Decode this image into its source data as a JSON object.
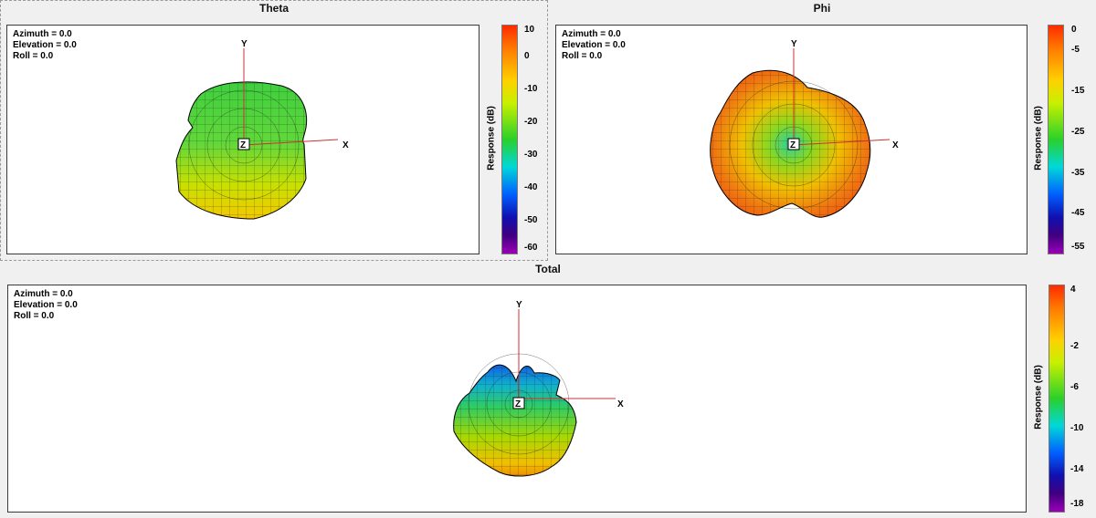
{
  "panes": [
    {
      "title": "Theta",
      "info": [
        "Azimuth = 0.0",
        "Elevation = 0.0",
        "Roll = 0.0"
      ],
      "axes": {
        "x": "X",
        "y": "Y",
        "z": "Z"
      },
      "colorbar": {
        "label": "Response  (dB)",
        "ticks": [
          "10",
          "0",
          "-10",
          "-20",
          "-30",
          "-40",
          "-50",
          "-60"
        ]
      }
    },
    {
      "title": "Phi",
      "info": [
        "Azimuth = 0.0",
        "Elevation = 0.0",
        "Roll = 0.0"
      ],
      "axes": {
        "x": "X",
        "y": "Y",
        "z": "Z"
      },
      "colorbar": {
        "label": "Response  (dB)",
        "ticks": [
          "0",
          "-5",
          "-15",
          "-25",
          "-35",
          "-45",
          "-55"
        ]
      }
    },
    {
      "title": "Total",
      "info": [
        "Azimuth = 0.0",
        "Elevation = 0.0",
        "Roll = 0.0"
      ],
      "axes": {
        "x": "X",
        "y": "Y",
        "z": "Z"
      },
      "colorbar": {
        "label": "Response  (dB)",
        "ticks": [
          "4",
          "-2",
          "-6",
          "-10",
          "-14",
          "-18"
        ]
      }
    }
  ]
}
